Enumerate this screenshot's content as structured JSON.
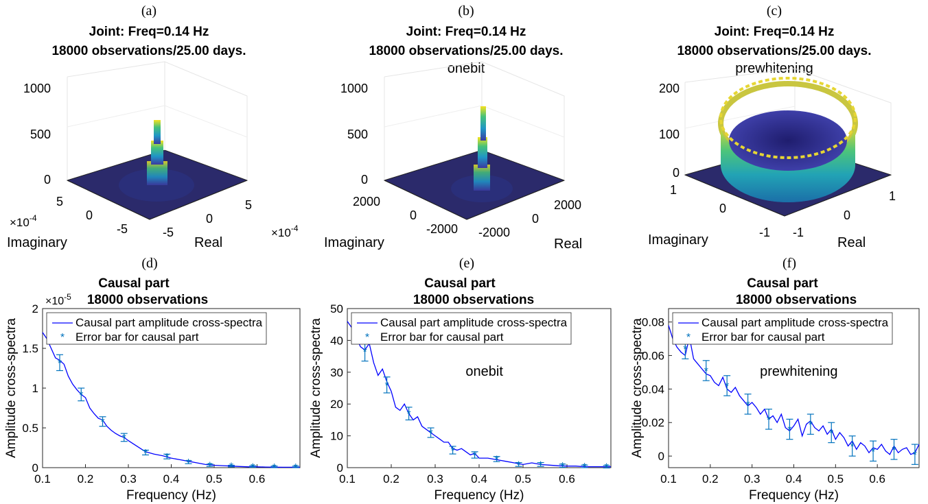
{
  "figure": {
    "top_panels": [
      {
        "panel_label": "(a)",
        "title_line1": "Joint: Freq=0.14 Hz",
        "title_line2": "18000 observations/25.00 days.",
        "subtitle": "",
        "z_ticks": [
          "1000",
          "500",
          "0"
        ],
        "imag_ticks": [
          "5",
          "0",
          "-5"
        ],
        "real_ticks": [
          "-5",
          "0",
          "5"
        ],
        "imag_multiplier": "×10",
        "imag_multiplier_exp": "-4",
        "real_multiplier": "×10",
        "real_multiplier_exp": "-4",
        "imag_label": "Imaginary",
        "real_label": "Real",
        "surface": "spike"
      },
      {
        "panel_label": "(b)",
        "title_line1": "Joint: Freq=0.14 Hz",
        "title_line2": "18000 observations/25.00 days.",
        "subtitle": "onebit",
        "z_ticks": [
          "1000",
          "500",
          "0"
        ],
        "imag_ticks": [
          "2000",
          "0",
          "-2000"
        ],
        "real_ticks": [
          "-2000",
          "0",
          "2000"
        ],
        "imag_multiplier": "",
        "imag_multiplier_exp": "",
        "real_multiplier": "",
        "real_multiplier_exp": "",
        "imag_label": "Imaginary",
        "real_label": "Real",
        "surface": "spike"
      },
      {
        "panel_label": "(c)",
        "title_line1": "Joint: Freq=0.14 Hz",
        "title_line2": "18000 observations/25.00 days.",
        "subtitle": "prewhitening",
        "z_ticks": [
          "200",
          "100",
          "0"
        ],
        "imag_ticks": [
          "1",
          "0",
          "-1"
        ],
        "real_ticks": [
          "-1",
          "0",
          "1"
        ],
        "imag_multiplier": "",
        "imag_multiplier_exp": "",
        "real_multiplier": "",
        "real_multiplier_exp": "",
        "imag_label": "Imaginary",
        "real_label": "Real",
        "surface": "ring"
      }
    ]
  },
  "chart_data": [
    {
      "type": "line",
      "panel_label": "(d)",
      "title": "Causal part",
      "title_line2": "18000 observations",
      "subtitle": "",
      "xlabel": "Frequency (Hz)",
      "ylabel": "Amplitude cross-spectra",
      "xlim": [
        0.1,
        0.7
      ],
      "ylim": [
        0,
        2e-05
      ],
      "x_ticks": [
        0.1,
        0.2,
        0.3,
        0.4,
        0.5,
        0.6
      ],
      "x_tick_labels": [
        "0.1",
        "0.2",
        "0.3",
        "0.4",
        "0.5",
        "0.6"
      ],
      "y_ticks": [
        0,
        5e-06,
        1e-05,
        1.5e-05,
        2e-05
      ],
      "y_tick_labels": [
        "0",
        "0.5",
        "1",
        "1.5",
        "2"
      ],
      "y_multiplier": "×10",
      "y_multiplier_exp": "-5",
      "legend": {
        "placement": "top-left",
        "line_label": "Causal part amplitude cross-spectra",
        "marker_label": "Error bar for causal part"
      },
      "colors": {
        "line": "#0000ff",
        "errorbar": "#0072bd"
      },
      "series": [
        {
          "name": "Causal part amplitude cross-spectra",
          "x": [
            0.1,
            0.11,
            0.12,
            0.13,
            0.14,
            0.15,
            0.16,
            0.17,
            0.18,
            0.19,
            0.2,
            0.21,
            0.22,
            0.23,
            0.24,
            0.25,
            0.26,
            0.27,
            0.28,
            0.29,
            0.3,
            0.32,
            0.34,
            0.36,
            0.38,
            0.4,
            0.42,
            0.44,
            0.46,
            0.48,
            0.5,
            0.52,
            0.54,
            0.56,
            0.58,
            0.6,
            0.62,
            0.64,
            0.66,
            0.68,
            0.7
          ],
          "values": [
            1.7e-05,
            1.62e-05,
            1.5e-05,
            1.38e-05,
            1.35e-05,
            1.3e-05,
            1.15e-05,
            1.05e-05,
            9.8e-06,
            9.2e-06,
            8.8e-06,
            7.5e-06,
            6.8e-06,
            6.2e-06,
            6e-06,
            5.2e-06,
            4.7e-06,
            4.3e-06,
            4e-06,
            3.8e-06,
            3.4e-06,
            2.7e-06,
            2e-06,
            1.7e-06,
            1.5e-06,
            1.2e-06,
            1e-06,
            8e-07,
            6e-07,
            4e-07,
            3e-07,
            2.5e-07,
            2e-07,
            1.5e-07,
            1e-07,
            1e-07,
            8e-08,
            6e-08,
            5e-08,
            5e-08,
            5e-08
          ]
        }
      ],
      "error_bars": {
        "x": [
          0.14,
          0.19,
          0.24,
          0.29,
          0.34,
          0.39,
          0.44,
          0.49,
          0.54,
          0.59,
          0.64,
          0.69
        ],
        "y": [
          1.32e-05,
          9.2e-06,
          5.8e-06,
          3.8e-06,
          1.9e-06,
          1.4e-06,
          7e-07,
          3e-07,
          2e-07,
          1.5e-07,
          1e-07,
          1e-07
        ],
        "err": [
          1e-06,
          8e-07,
          6e-07,
          5e-07,
          3e-07,
          3e-07,
          2e-07,
          1.5e-07,
          1e-07,
          1e-07,
          1e-07,
          1e-07
        ]
      }
    },
    {
      "type": "line",
      "panel_label": "(e)",
      "title": "Causal part",
      "title_line2": "18000 observations",
      "subtitle": "onebit",
      "xlabel": "Frequency (Hz)",
      "ylabel": "Amplitude cross-spectra",
      "xlim": [
        0.1,
        0.7
      ],
      "ylim": [
        0,
        50
      ],
      "x_ticks": [
        0.1,
        0.2,
        0.3,
        0.4,
        0.5,
        0.6
      ],
      "x_tick_labels": [
        "0.1",
        "0.2",
        "0.3",
        "0.4",
        "0.5",
        "0.6"
      ],
      "y_ticks": [
        0,
        10,
        20,
        30,
        40,
        50
      ],
      "y_tick_labels": [
        "0",
        "10",
        "20",
        "30",
        "40",
        "50"
      ],
      "y_multiplier": "",
      "y_multiplier_exp": "",
      "legend": {
        "placement": "top-left",
        "line_label": "Causal part amplitude cross-spectra",
        "marker_label": "Error bar for causal part"
      },
      "colors": {
        "line": "#0000ff",
        "errorbar": "#0072bd"
      },
      "series": [
        {
          "name": "Causal part amplitude cross-spectra",
          "x": [
            0.1,
            0.11,
            0.12,
            0.13,
            0.14,
            0.15,
            0.16,
            0.17,
            0.18,
            0.19,
            0.2,
            0.21,
            0.22,
            0.23,
            0.24,
            0.25,
            0.26,
            0.27,
            0.28,
            0.29,
            0.3,
            0.31,
            0.32,
            0.33,
            0.34,
            0.35,
            0.36,
            0.37,
            0.38,
            0.39,
            0.4,
            0.42,
            0.44,
            0.46,
            0.48,
            0.5,
            0.52,
            0.54,
            0.56,
            0.58,
            0.6,
            0.62,
            0.64,
            0.66,
            0.68,
            0.7
          ],
          "values": [
            46,
            44,
            41,
            38,
            37,
            39,
            33,
            29,
            31,
            27,
            24,
            19,
            18,
            20,
            17,
            15,
            16,
            13,
            12,
            11,
            10,
            9,
            8,
            8,
            6,
            5.5,
            6,
            5,
            4,
            4.5,
            3,
            3,
            2.5,
            2,
            1.5,
            1,
            1.5,
            1,
            0.8,
            0.6,
            0.5,
            0.5,
            0.3,
            0.3,
            0.3,
            0.3
          ]
        }
      ],
      "error_bars": {
        "x": [
          0.14,
          0.19,
          0.24,
          0.29,
          0.34,
          0.39,
          0.44,
          0.49,
          0.54,
          0.59,
          0.64,
          0.69
        ],
        "y": [
          36.5,
          26,
          17,
          11,
          5.5,
          4,
          2.7,
          1,
          1,
          0.6,
          0.4,
          0.3
        ],
        "err": [
          3,
          2.5,
          2,
          1.5,
          1.2,
          1,
          0.8,
          0.6,
          0.6,
          0.5,
          0.4,
          0.4
        ]
      }
    },
    {
      "type": "line",
      "panel_label": "(f)",
      "title": "Causal part",
      "title_line2": "18000 observations",
      "subtitle": "prewhitening",
      "xlabel": "Frequency (Hz)",
      "ylabel": "Amplitude cross-spectra",
      "xlim": [
        0.1,
        0.7
      ],
      "ylim": [
        -0.002,
        0.088
      ],
      "x_ticks": [
        0.1,
        0.2,
        0.3,
        0.4,
        0.5,
        0.6
      ],
      "x_tick_labels": [
        "0.1",
        "0.2",
        "0.3",
        "0.4",
        "0.5",
        "0.6"
      ],
      "y_ticks": [
        0,
        0.02,
        0.04,
        0.06,
        0.08
      ],
      "y_tick_labels": [
        "0",
        "0.02",
        "0.04",
        "0.06",
        "0.08"
      ],
      "y_multiplier": "",
      "y_multiplier_exp": "",
      "legend": {
        "placement": "top-left",
        "line_label": "Causal part amplitude cross-spectra",
        "marker_label": "Error bar for causal part"
      },
      "colors": {
        "line": "#0000ff",
        "errorbar": "#0072bd"
      },
      "series": [
        {
          "name": "Causal part amplitude cross-spectra",
          "x": [
            0.1,
            0.11,
            0.12,
            0.13,
            0.14,
            0.15,
            0.16,
            0.17,
            0.18,
            0.19,
            0.2,
            0.21,
            0.22,
            0.23,
            0.24,
            0.25,
            0.26,
            0.27,
            0.28,
            0.29,
            0.3,
            0.31,
            0.32,
            0.33,
            0.34,
            0.35,
            0.36,
            0.37,
            0.38,
            0.39,
            0.4,
            0.41,
            0.42,
            0.43,
            0.44,
            0.45,
            0.46,
            0.47,
            0.48,
            0.49,
            0.5,
            0.51,
            0.52,
            0.53,
            0.54,
            0.55,
            0.56,
            0.57,
            0.58,
            0.59,
            0.6,
            0.61,
            0.62,
            0.63,
            0.64,
            0.65,
            0.66,
            0.67,
            0.68,
            0.69,
            0.7
          ],
          "values": [
            0.078,
            0.07,
            0.065,
            0.062,
            0.06,
            0.071,
            0.058,
            0.055,
            0.052,
            0.049,
            0.048,
            0.044,
            0.042,
            0.047,
            0.04,
            0.038,
            0.041,
            0.036,
            0.033,
            0.03,
            0.032,
            0.029,
            0.025,
            0.028,
            0.022,
            0.024,
            0.02,
            0.025,
            0.017,
            0.015,
            0.018,
            0.022,
            0.012,
            0.019,
            0.021,
            0.017,
            0.015,
            0.018,
            0.013,
            0.016,
            0.01,
            0.014,
            0.011,
            0.006,
            0.009,
            0.004,
            0.008,
            0.006,
            0.002,
            0.005,
            0.004,
            0.007,
            0.003,
            0.001,
            0.006,
            0.002,
            0.004,
            0.005,
            0.001,
            0.002,
            0.007
          ]
        }
      ],
      "error_bars": {
        "x": [
          0.14,
          0.19,
          0.24,
          0.29,
          0.34,
          0.39,
          0.44,
          0.49,
          0.54,
          0.59,
          0.64,
          0.69
        ],
        "y": [
          0.064,
          0.051,
          0.042,
          0.031,
          0.022,
          0.016,
          0.019,
          0.014,
          0.006,
          0.003,
          0.004,
          0.001
        ],
        "err": [
          0.006,
          0.006,
          0.006,
          0.006,
          0.006,
          0.006,
          0.006,
          0.006,
          0.006,
          0.006,
          0.006,
          0.006
        ]
      }
    }
  ]
}
